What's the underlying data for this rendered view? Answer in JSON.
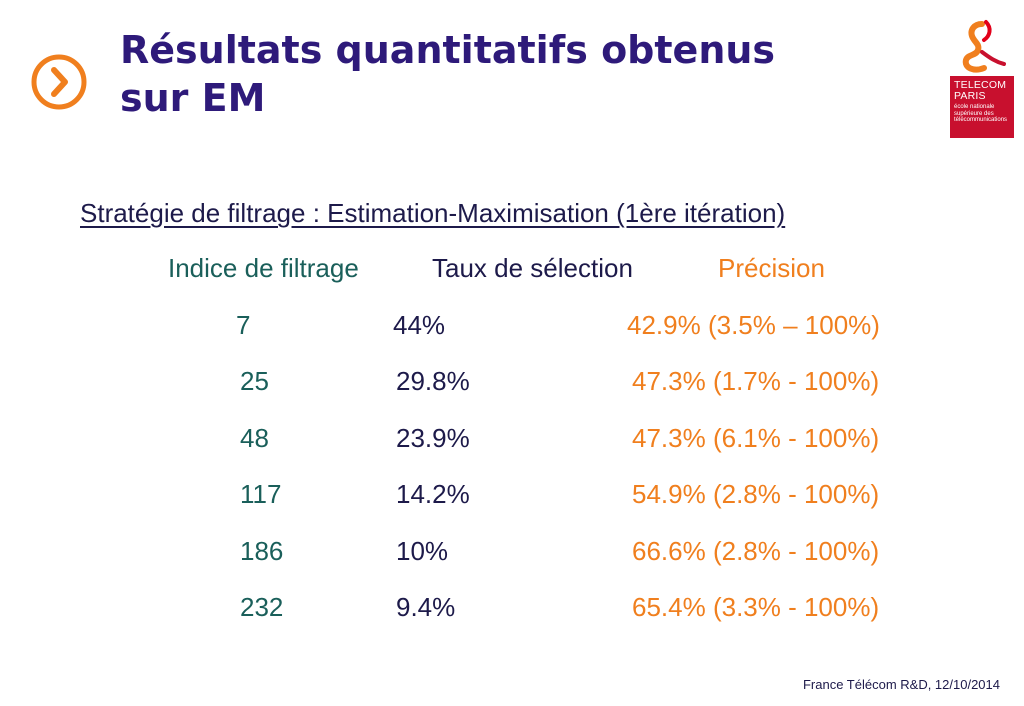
{
  "title": {
    "line1": "Résultats quantitatifs obtenus",
    "line2": "sur EM"
  },
  "logo": {
    "brand_line1": "TELECOM",
    "brand_line2": "PARIS",
    "small1": "école nationale",
    "small2": "supérieure des",
    "small3": "télécommunications"
  },
  "subtitle": "Stratégie de filtrage : Estimation-Maximisation (1ère itération)",
  "table": {
    "headers": {
      "indice": "Indice de filtrage",
      "taux": "Taux de sélection",
      "precision": "Précision"
    },
    "rows": [
      {
        "indice": "7",
        "taux": "44%",
        "precision": "42.9% (3.5% – 100%)"
      },
      {
        "indice": "25",
        "taux": "29.8%",
        "precision": "47.3% (1.7% - 100%)"
      },
      {
        "indice": "48",
        "taux": "23.9%",
        "precision": "47.3% (6.1% - 100%)"
      },
      {
        "indice": "117",
        "taux": "14.2%",
        "precision": "54.9% (2.8% - 100%)"
      },
      {
        "indice": "186",
        "taux": "10%",
        "precision": "66.6% (2.8% - 100%)"
      },
      {
        "indice": "232",
        "taux": "9.4%",
        "precision": "65.4% (3.3% - 100%)"
      }
    ]
  },
  "footer": "France Télécom R&D, 12/10/2014",
  "colors": {
    "title": "#2e1a7a",
    "accent_orange": "#f07f1e",
    "teal": "#1a5f5a",
    "navy_text": "#1d1a4a",
    "logo_red": "#c8102e"
  },
  "icons": {
    "nav": "chevron-right-circle-icon",
    "logo": "ampersand-logo"
  }
}
